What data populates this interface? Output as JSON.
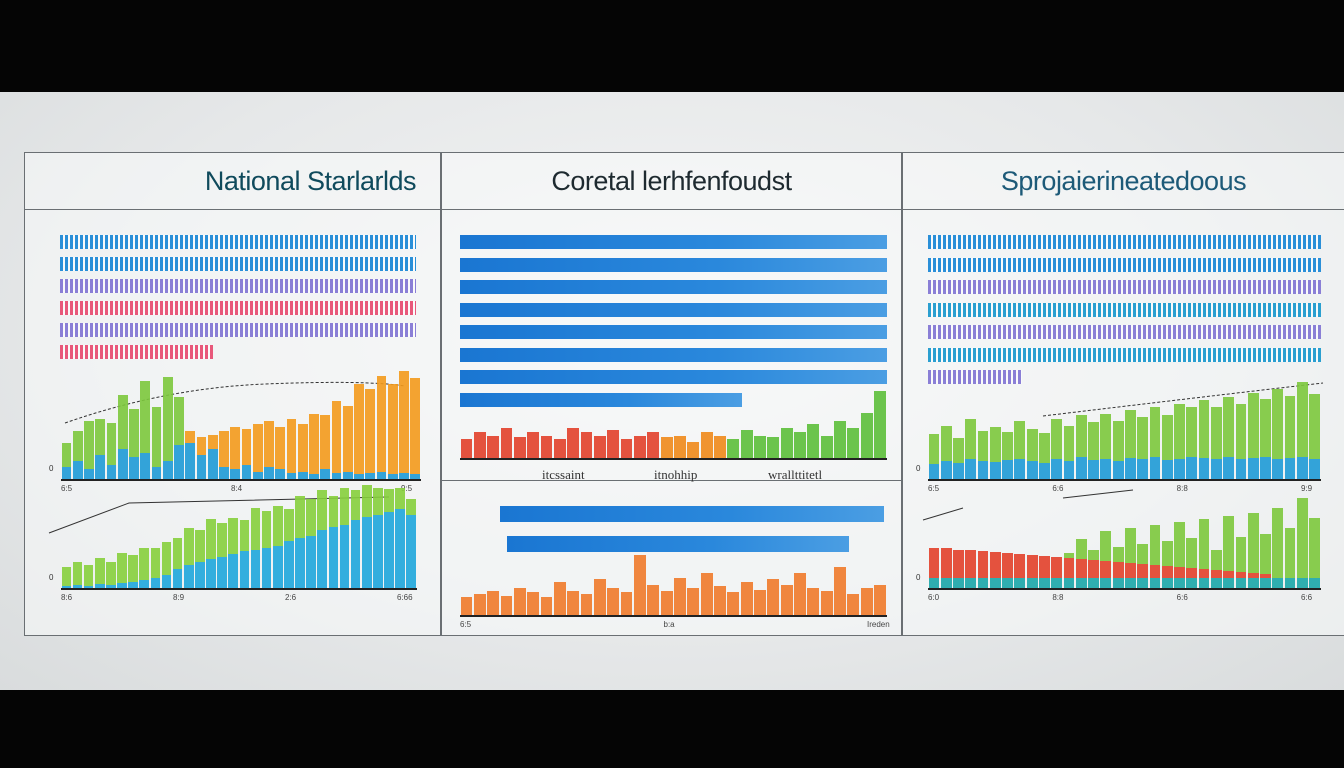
{
  "panels": [
    {
      "title": "National Starlarlds"
    },
    {
      "title": "Coretal lerhfenfoudst",
      "labels": [
        "itcssaint",
        "itnohhip",
        "wrallttitetl"
      ]
    },
    {
      "title": "Sprojaierineatedoous"
    }
  ],
  "colors": {
    "blue": "#1e9ad6",
    "green": "#7cc83c",
    "orange": "#f08a1a",
    "red": "#e2402a",
    "solid_blue": "#1a76d2",
    "teal": "#1aa6a8"
  },
  "chart_data": [
    {
      "id": "p1-hbars",
      "type": "bar",
      "orientation": "horizontal",
      "values": [
        1,
        1,
        1,
        1,
        1,
        0.43
      ]
    },
    {
      "id": "p1-c1",
      "type": "bar",
      "stacked": true,
      "ylabel": "0",
      "xticks": [
        "6:5",
        "8:4",
        "9:5"
      ],
      "series": [
        {
          "name": "blue",
          "color": "#1e9ad6",
          "values": [
            10,
            15,
            8,
            20,
            12,
            25,
            18,
            22,
            10,
            15,
            28,
            30,
            20,
            25,
            10,
            8,
            12,
            6,
            10,
            8,
            5,
            6,
            4,
            8,
            5,
            6,
            4,
            5,
            6,
            4,
            5,
            4
          ]
        },
        {
          "name": "green",
          "color": "#7cc83c",
          "values": [
            20,
            25,
            40,
            30,
            35,
            45,
            40,
            60,
            50,
            70,
            40,
            0,
            0,
            0,
            0,
            0,
            0,
            0,
            0,
            0,
            0,
            0,
            0,
            0,
            0,
            0,
            0,
            0,
            0,
            0,
            0,
            0
          ]
        },
        {
          "name": "orange",
          "color": "#f39a1c",
          "values": [
            0,
            0,
            0,
            0,
            0,
            0,
            0,
            0,
            0,
            0,
            0,
            10,
            15,
            12,
            30,
            35,
            30,
            40,
            38,
            35,
            45,
            40,
            50,
            45,
            60,
            55,
            75,
            70,
            80,
            75,
            85,
            80
          ]
        }
      ]
    },
    {
      "id": "p1-c2",
      "type": "bar",
      "stacked": true,
      "ylabel": "0",
      "xticks": [
        "8:6",
        "8:9",
        "2:6",
        "6:66"
      ],
      "series": [
        {
          "name": "blue",
          "color": "#1ea6dc",
          "values": [
            2,
            3,
            2,
            4,
            3,
            5,
            6,
            8,
            10,
            12,
            18,
            22,
            25,
            28,
            30,
            32,
            35,
            36,
            38,
            40,
            45,
            48,
            50,
            55,
            58,
            60,
            65,
            68,
            70,
            72,
            75,
            70
          ]
        },
        {
          "name": "green",
          "color": "#86cf3c",
          "values": [
            18,
            22,
            20,
            25,
            22,
            28,
            25,
            30,
            28,
            32,
            30,
            35,
            30,
            38,
            32,
            35,
            30,
            40,
            35,
            38,
            30,
            40,
            35,
            38,
            30,
            35,
            28,
            30,
            25,
            22,
            20,
            15
          ]
        }
      ]
    },
    {
      "id": "p2-hbars",
      "type": "bar",
      "orientation": "horizontal",
      "values": [
        1,
        1,
        1,
        1,
        1,
        1,
        1,
        0.66
      ]
    },
    {
      "id": "p2-c1",
      "type": "bar",
      "stacked": false,
      "series": [
        {
          "name": "mixed",
          "color": "#e2402a",
          "values": [
            25,
            35,
            30,
            40,
            28,
            35,
            30,
            25,
            40,
            35,
            30,
            38,
            25,
            30,
            35,
            28,
            30,
            22,
            35,
            30,
            25,
            38,
            30,
            28,
            40,
            35,
            45,
            30,
            50,
            40,
            60,
            90
          ]
        }
      ]
    },
    {
      "id": "p2-hbars2",
      "type": "bar",
      "orientation": "horizontal",
      "values": [
        0.9,
        0.8
      ]
    },
    {
      "id": "p2-c2",
      "type": "bar",
      "stacked": false,
      "xticks": [
        "6:5",
        "b:a",
        "Ireden"
      ],
      "series": [
        {
          "name": "orange",
          "color": "#ef7a2a",
          "values": [
            30,
            35,
            40,
            32,
            45,
            38,
            30,
            55,
            40,
            35,
            60,
            45,
            38,
            100,
            50,
            40,
            62,
            45,
            70,
            48,
            38,
            55,
            42,
            60,
            50,
            70,
            45,
            40,
            80,
            35,
            45,
            50
          ]
        }
      ]
    },
    {
      "id": "p3-hbars",
      "type": "bar",
      "orientation": "horizontal",
      "values": [
        1,
        1,
        1,
        1,
        1,
        1,
        0.24
      ]
    },
    {
      "id": "p3-c1",
      "type": "bar",
      "stacked": true,
      "ylabel": "0",
      "xticks": [
        "6:5",
        "6:6",
        "8:8",
        "9:9"
      ],
      "series": [
        {
          "name": "blue",
          "color": "#1e9ad6",
          "values": [
            15,
            18,
            16,
            20,
            18,
            17,
            19,
            20,
            18,
            16,
            20,
            18,
            22,
            19,
            20,
            18,
            21,
            20,
            22,
            19,
            20,
            22,
            21,
            20,
            22,
            20,
            21,
            22,
            20,
            21,
            22,
            20
          ]
        },
        {
          "name": "green",
          "color": "#7cc83c",
          "values": [
            30,
            35,
            25,
            40,
            30,
            35,
            28,
            38,
            32,
            30,
            40,
            35,
            42,
            38,
            45,
            40,
            48,
            42,
            50,
            45,
            55,
            50,
            58,
            52,
            60,
            55,
            65,
            58,
            70,
            62,
            75,
            65
          ]
        }
      ]
    },
    {
      "id": "p3-c2",
      "type": "bar",
      "stacked": true,
      "ylabel": "0",
      "xticks": [
        "6:0",
        "8:8",
        "6:6",
        "6:6"
      ],
      "series": [
        {
          "name": "teal",
          "color": "#1aa6a8",
          "values": [
            10,
            10,
            10,
            10,
            10,
            10,
            10,
            10,
            10,
            10,
            10,
            10,
            10,
            10,
            10,
            10,
            10,
            10,
            10,
            10,
            10,
            10,
            10,
            10,
            10,
            10,
            10,
            10,
            10,
            10,
            10,
            10
          ]
        },
        {
          "name": "red",
          "color": "#e2402a",
          "values": [
            30,
            30,
            28,
            28,
            27,
            26,
            25,
            24,
            23,
            22,
            21,
            20,
            19,
            18,
            17,
            16,
            15,
            14,
            13,
            12,
            11,
            10,
            9,
            8,
            7,
            6,
            5,
            4,
            0,
            0,
            0,
            0
          ]
        },
        {
          "name": "green",
          "color": "#7cc83c",
          "values": [
            0,
            0,
            0,
            0,
            0,
            0,
            0,
            0,
            0,
            0,
            0,
            5,
            20,
            10,
            30,
            15,
            35,
            20,
            40,
            25,
            45,
            30,
            50,
            20,
            55,
            35,
            60,
            40,
            70,
            50,
            80,
            60
          ]
        }
      ]
    }
  ]
}
